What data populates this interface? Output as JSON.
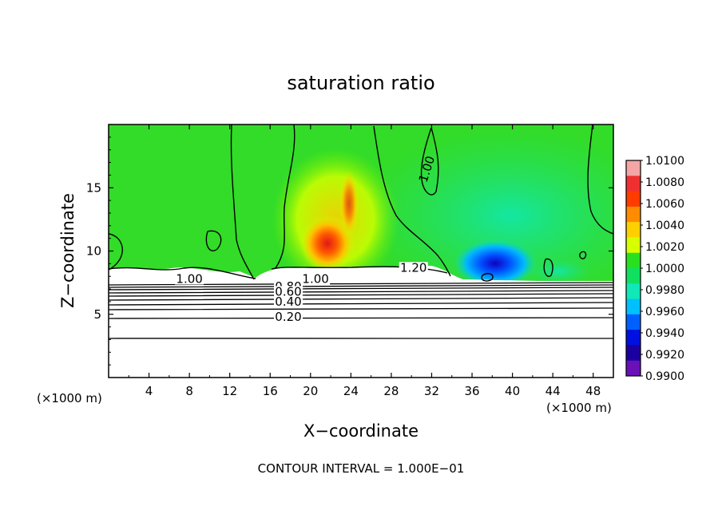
{
  "chart_data": {
    "type": "heatmap",
    "title": "saturation ratio",
    "xlabel": "X−coordinate",
    "ylabel": "Z−coordinate",
    "x_unit": "(×1000 m)",
    "y_unit": "(×1000 m)",
    "xlim": [
      0,
      50
    ],
    "ylim": [
      0,
      20
    ],
    "x_ticks": [
      4,
      8,
      12,
      16,
      20,
      24,
      28,
      32,
      36,
      40,
      44,
      48
    ],
    "y_ticks": [
      5,
      10,
      15
    ],
    "colorbar": {
      "range": [
        0.99,
        1.01
      ],
      "tick_labels": [
        "1.0100",
        "1.0080",
        "1.0060",
        "1.0040",
        "1.0020",
        "1.0000",
        "0.9980",
        "0.9960",
        "0.9940",
        "0.9920",
        "0.9900"
      ],
      "colors": [
        "#f4a6a6",
        "#f03030",
        "#ff3b00",
        "#ff8c00",
        "#ffd000",
        "#d8ff00",
        "#28e020",
        "#10e060",
        "#10e8b8",
        "#00c0ff",
        "#0060ff",
        "#0010e0",
        "#1a00a0",
        "#6a10b8"
      ]
    },
    "contour_labels": [
      {
        "text": "1.00",
        "x": 8.0,
        "z": 7.6
      },
      {
        "text": "1.00",
        "x": 20.5,
        "z": 7.6
      },
      {
        "text": "0.80",
        "x": 17.8,
        "z": 7.0
      },
      {
        "text": "0.60",
        "x": 17.8,
        "z": 6.6
      },
      {
        "text": "0.40",
        "x": 17.8,
        "z": 5.8
      },
      {
        "text": "0.20",
        "x": 17.8,
        "z": 4.6
      },
      {
        "text": "1.20",
        "x": 30.2,
        "z": 8.5
      },
      {
        "text": "1.00",
        "x": 31.9,
        "z": 16.5
      }
    ],
    "contour_interval_text": "CONTOUR INTERVAL = 1.000E−01"
  }
}
